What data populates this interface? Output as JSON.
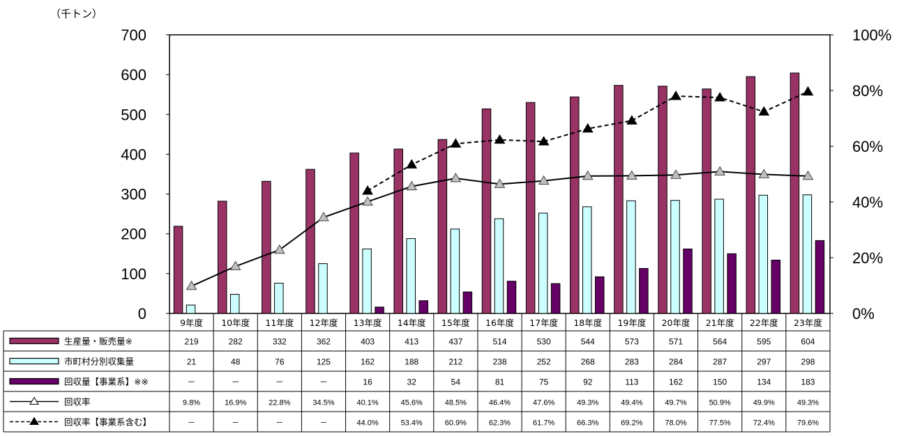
{
  "chart_data": {
    "type": "bar+line",
    "unit_label": "（千トン）",
    "categories": [
      "9年度",
      "10年度",
      "11年度",
      "12年度",
      "13年度",
      "14年度",
      "15年度",
      "16年度",
      "17年度",
      "18年度",
      "19年度",
      "20年度",
      "21年度",
      "22年度",
      "23年度"
    ],
    "left_axis": {
      "ylim": [
        0,
        700
      ],
      "ticks": [
        "0",
        "100",
        "200",
        "300",
        "400",
        "500",
        "600",
        "700"
      ]
    },
    "right_axis": {
      "ylim": [
        0,
        100
      ],
      "ticks": [
        "0%",
        "20%",
        "40%",
        "60%",
        "80%",
        "100%"
      ]
    },
    "bar_series": [
      {
        "name": "生産量・販売量※",
        "color": "#993366",
        "values": [
          219,
          282,
          332,
          362,
          403,
          413,
          437,
          514,
          530,
          544,
          573,
          571,
          564,
          595,
          604
        ],
        "labels": [
          "219",
          "282",
          "332",
          "362",
          "403",
          "413",
          "437",
          "514",
          "530",
          "544",
          "573",
          "571",
          "564",
          "595",
          "604"
        ]
      },
      {
        "name": "市町村分別収集量",
        "color": "#ccffff",
        "values": [
          21,
          48,
          76,
          125,
          162,
          188,
          212,
          238,
          252,
          268,
          283,
          284,
          287,
          297,
          298
        ],
        "labels": [
          "21",
          "48",
          "76",
          "125",
          "162",
          "188",
          "212",
          "238",
          "252",
          "268",
          "283",
          "284",
          "287",
          "297",
          "298"
        ]
      },
      {
        "name": "回収量【事業系】※※",
        "color": "#660066",
        "values": [
          null,
          null,
          null,
          null,
          16,
          32,
          54,
          81,
          75,
          92,
          113,
          162,
          150,
          134,
          183
        ],
        "labels": [
          "－",
          "－",
          "－",
          "－",
          "16",
          "32",
          "54",
          "81",
          "75",
          "92",
          "113",
          "162",
          "150",
          "134",
          "183"
        ]
      }
    ],
    "line_series": [
      {
        "name": "回収率",
        "style": "solid",
        "marker": "open-triangle",
        "values": [
          9.8,
          16.9,
          22.8,
          34.5,
          40.1,
          45.6,
          48.5,
          46.4,
          47.6,
          49.3,
          49.4,
          49.7,
          50.9,
          49.9,
          49.3
        ],
        "labels": [
          "9.8%",
          "16.9%",
          "22.8%",
          "34.5%",
          "40.1%",
          "45.6%",
          "48.5%",
          "46.4%",
          "47.6%",
          "49.3%",
          "49.4%",
          "49.7%",
          "50.9%",
          "49.9%",
          "49.3%"
        ]
      },
      {
        "name": "回収率【事業系含む】",
        "style": "dashed",
        "marker": "filled-triangle",
        "values": [
          null,
          null,
          null,
          null,
          44.0,
          53.4,
          60.9,
          62.3,
          61.7,
          66.3,
          69.2,
          78.0,
          77.5,
          72.4,
          79.6
        ],
        "labels": [
          "－",
          "－",
          "－",
          "－",
          "44.0%",
          "53.4%",
          "60.9%",
          "62.3%",
          "61.7%",
          "66.3%",
          "69.2%",
          "78.0%",
          "77.5%",
          "72.4%",
          "79.6%"
        ]
      }
    ],
    "grid": false
  }
}
